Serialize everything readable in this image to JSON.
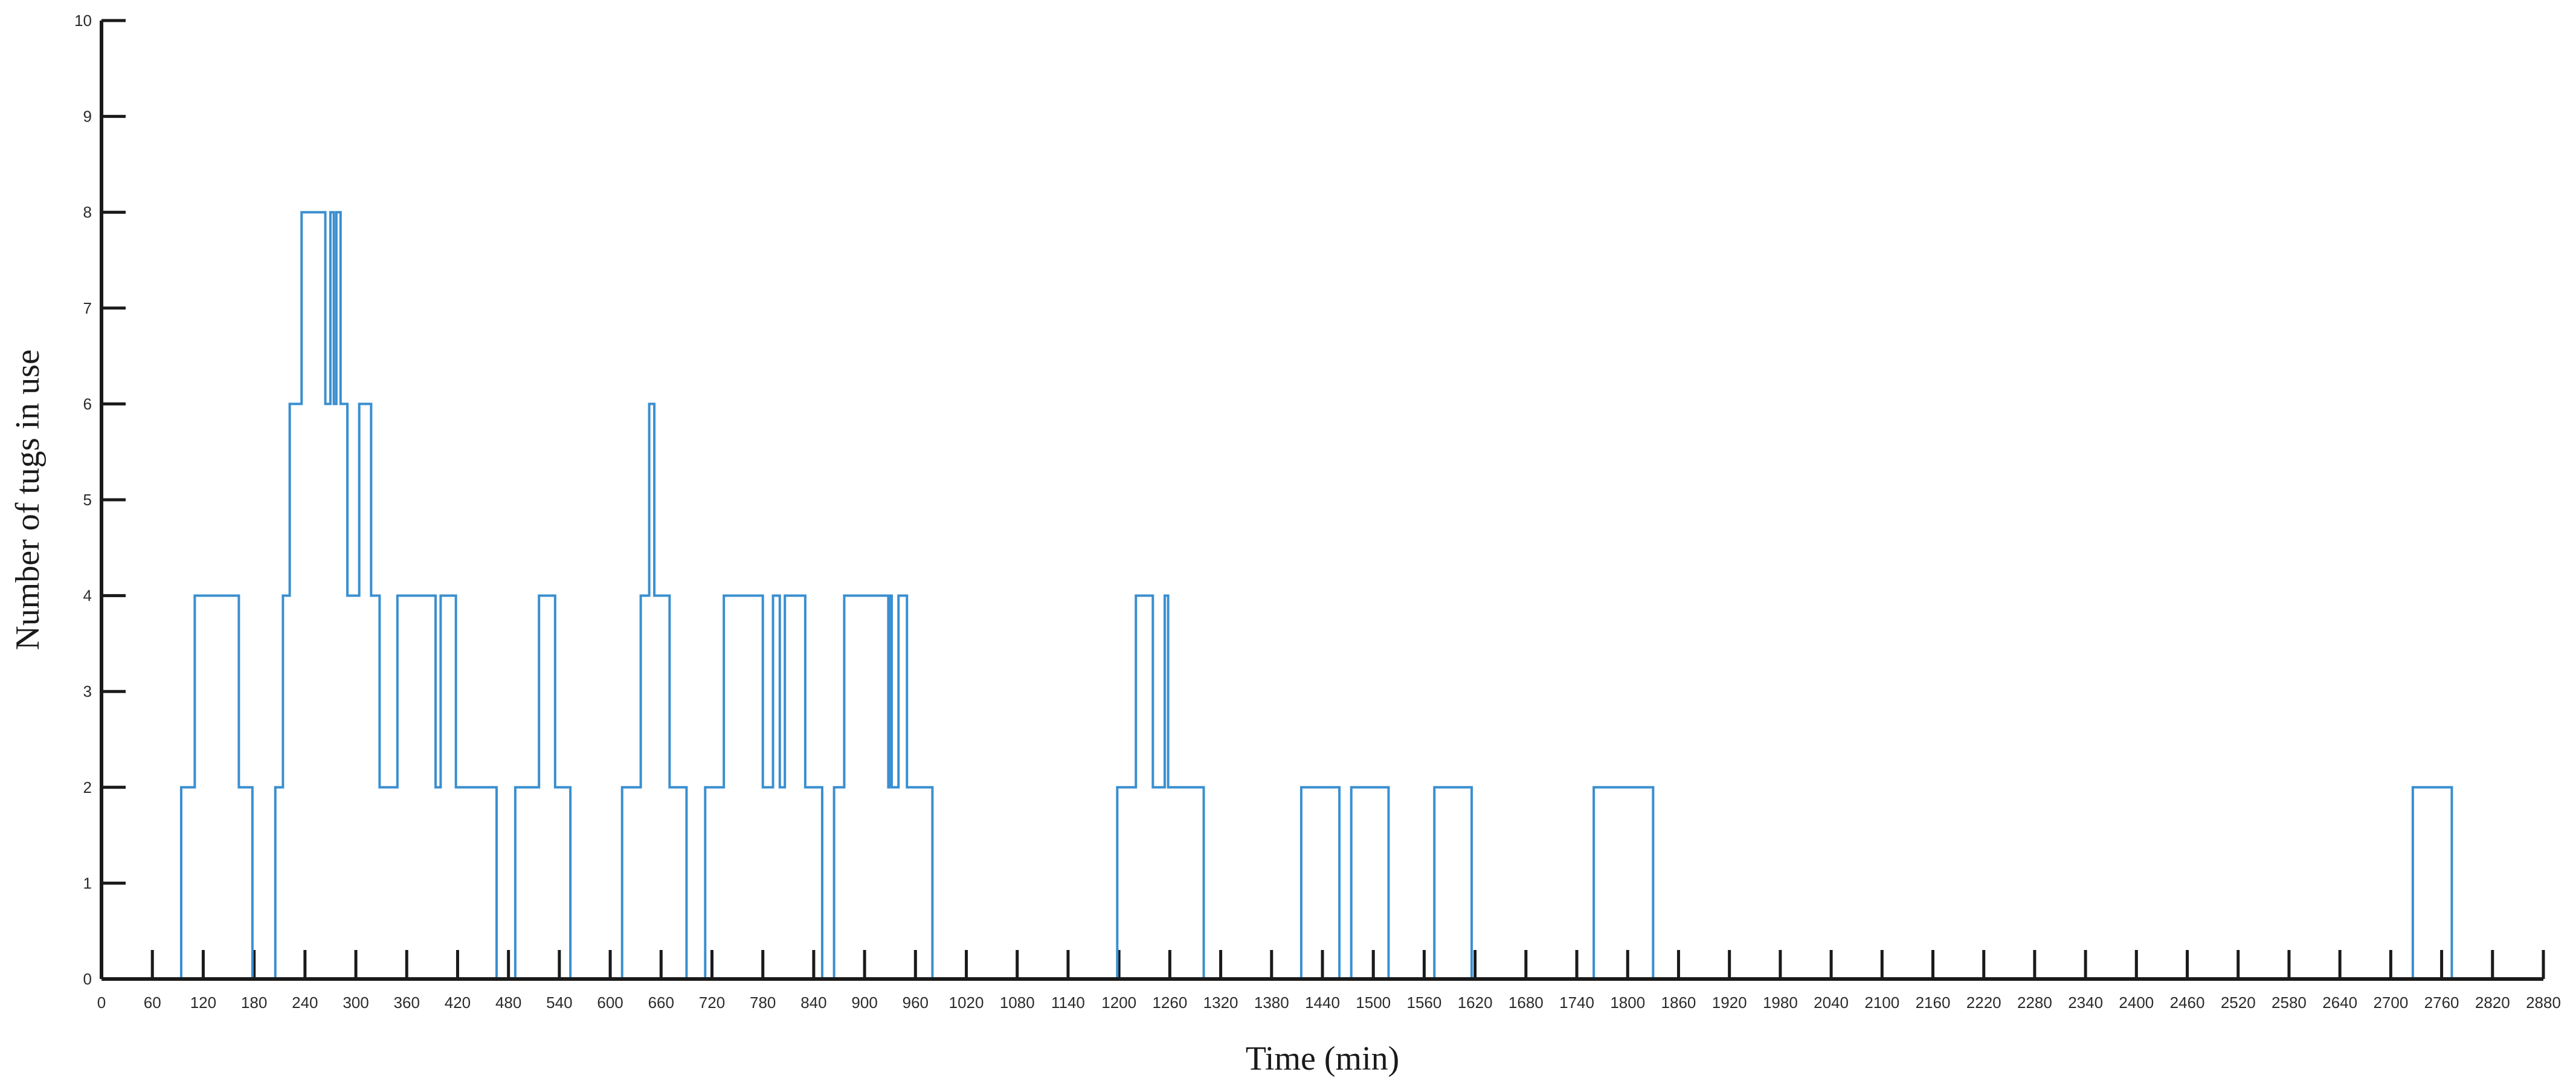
{
  "chart_data": {
    "type": "line",
    "xlabel": "Time (min)",
    "ylabel": "Number of tugs in use",
    "xlim": [
      0,
      2880
    ],
    "ylim": [
      0,
      10
    ],
    "x_ticks": [
      0,
      60,
      120,
      180,
      240,
      300,
      360,
      420,
      480,
      540,
      600,
      660,
      720,
      780,
      840,
      900,
      960,
      1020,
      1080,
      1140,
      1200,
      1260,
      1320,
      1380,
      1440,
      1500,
      1560,
      1620,
      1680,
      1740,
      1800,
      1860,
      1920,
      1980,
      2040,
      2100,
      2160,
      2220,
      2280,
      2340,
      2400,
      2460,
      2520,
      2580,
      2640,
      2700,
      2760,
      2820,
      2880
    ],
    "y_ticks": [
      0,
      1,
      2,
      3,
      4,
      5,
      6,
      7,
      8,
      9,
      10
    ],
    "grid": false,
    "step": true,
    "line_color": "#3a8fd0",
    "axis_color": "#1a1a1a",
    "series": [
      {
        "x": [
          0,
          94,
          106,
          110,
          162,
          174,
          178,
          205,
          214,
          222,
          236,
          264,
          270,
          274,
          277,
          282,
          290,
          304,
          318,
          322,
          328,
          334,
          349,
          394,
          397,
          400,
          418,
          466,
          488,
          492,
          494,
          516,
          535,
          553,
          614,
          636,
          646,
          652,
          670,
          690,
          712,
          734,
          780,
          792,
          800,
          806,
          810,
          830,
          850,
          864,
          876,
          928,
          930,
          932,
          940,
          950,
          980,
          1198,
          1220,
          1240,
          1254,
          1258,
          1262,
          1300,
          1415,
          1460,
          1474,
          1518,
          1572,
          1616,
          1760,
          1830,
          2726,
          2772,
          2880
        ],
        "y": [
          0,
          2,
          2,
          4,
          2,
          2,
          0,
          2,
          4,
          6,
          8,
          6,
          8,
          6,
          8,
          6,
          4,
          6,
          4,
          4,
          2,
          2,
          4,
          2,
          2,
          4,
          2,
          0,
          2,
          2,
          2,
          4,
          2,
          0,
          2,
          4,
          6,
          4,
          2,
          0,
          2,
          4,
          2,
          4,
          2,
          4,
          4,
          2,
          0,
          2,
          4,
          2,
          4,
          2,
          4,
          2,
          0,
          2,
          4,
          2,
          4,
          2,
          2,
          0,
          2,
          0,
          2,
          0,
          2,
          0,
          2,
          0,
          2,
          0,
          0
        ]
      }
    ]
  }
}
